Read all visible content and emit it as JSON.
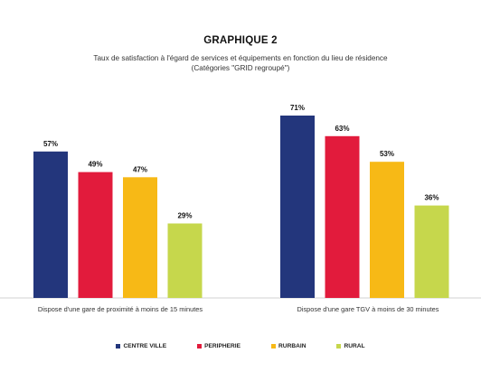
{
  "chart_data": {
    "type": "bar",
    "title": "GRAPHIQUE 2",
    "subtitle_line1": "Taux de satisfaction à l'égard de services et équipements  en fonction du lieu de résidence",
    "subtitle_line2": "(Catégories \"GRID regroupé\")",
    "categories": [
      "Dispose d'une gare de proximité à moins de 15 minutes",
      "Dispose d'une gare TGV à moins de 30 minutes"
    ],
    "series": [
      {
        "name": "CENTRE VILLE",
        "color": "#23367c",
        "values": [
          57,
          71
        ]
      },
      {
        "name": "PERIPHERIE",
        "color": "#e21b3c",
        "values": [
          49,
          63
        ]
      },
      {
        "name": "RURBAIN",
        "color": "#f7b916",
        "values": [
          47,
          53
        ]
      },
      {
        "name": "RURAL",
        "color": "#c6d74c",
        "values": [
          29,
          36
        ]
      }
    ],
    "value_suffix": "%",
    "ylim": [
      0,
      100
    ],
    "grid": false,
    "legend_position": "bottom"
  }
}
